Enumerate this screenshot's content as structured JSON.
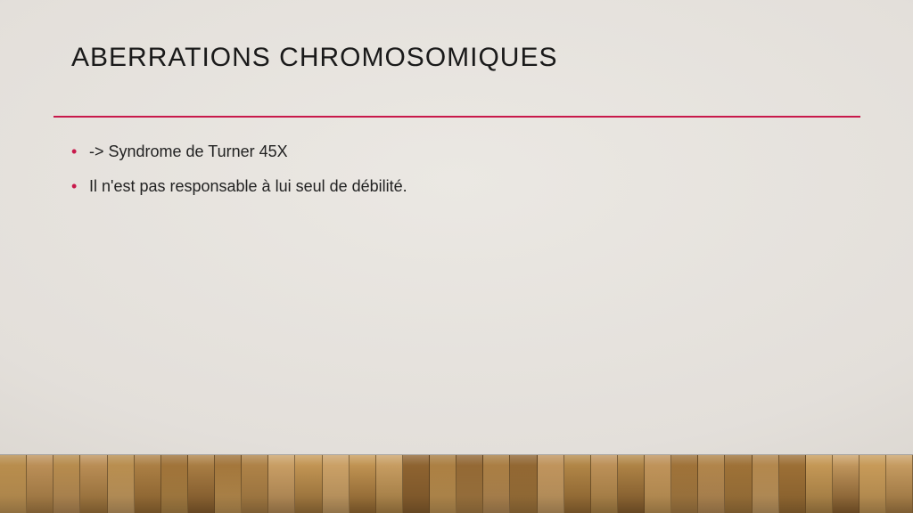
{
  "title": "ABERRATIONS CHROMOSOMIQUES",
  "rule_color": "#c8194b",
  "bullet_color": "#c8194b",
  "bullets": [
    "-> Syndrome de Turner 45X",
    "Il n'est pas responsable à lui seul de débilité."
  ],
  "floor": {
    "plank_count": 34,
    "palette": [
      "#b58a4a",
      "#a67a3e",
      "#c79a58",
      "#9c6f35",
      "#bd915a",
      "#8e6330",
      "#caa066",
      "#ae8247"
    ]
  }
}
